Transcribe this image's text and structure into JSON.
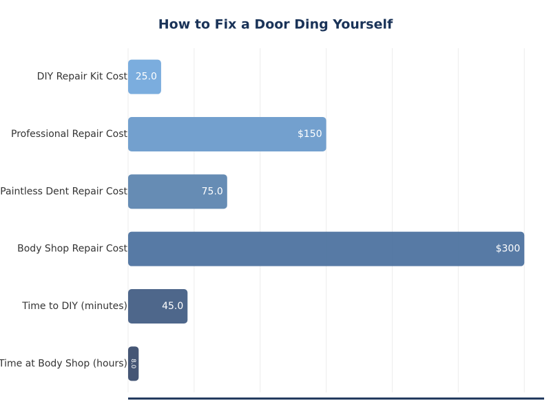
{
  "chart_data": {
    "type": "barh",
    "title": "How to Fix a Door Ding Yourself",
    "categories": [
      "DIY Repair Kit Cost",
      "Professional Repair Cost",
      "Paintless Dent Repair Cost",
      "Body Shop Repair Cost",
      "Time to DIY (minutes)",
      "Time at Body Shop (hours)"
    ],
    "values": [
      25,
      150,
      75,
      300,
      45,
      8
    ],
    "value_labels": [
      "25.0",
      "$150",
      "75.0",
      "$300",
      "45.0",
      "8.0"
    ],
    "colors": [
      "#74a9dc",
      "#6b9bcb",
      "#5e86b0",
      "#4e73a0",
      "#455f85",
      "#3b4d6e"
    ],
    "xlim": [
      0,
      315
    ],
    "xticks": [
      0,
      50,
      100,
      150,
      200,
      250,
      300
    ],
    "grid": true
  }
}
